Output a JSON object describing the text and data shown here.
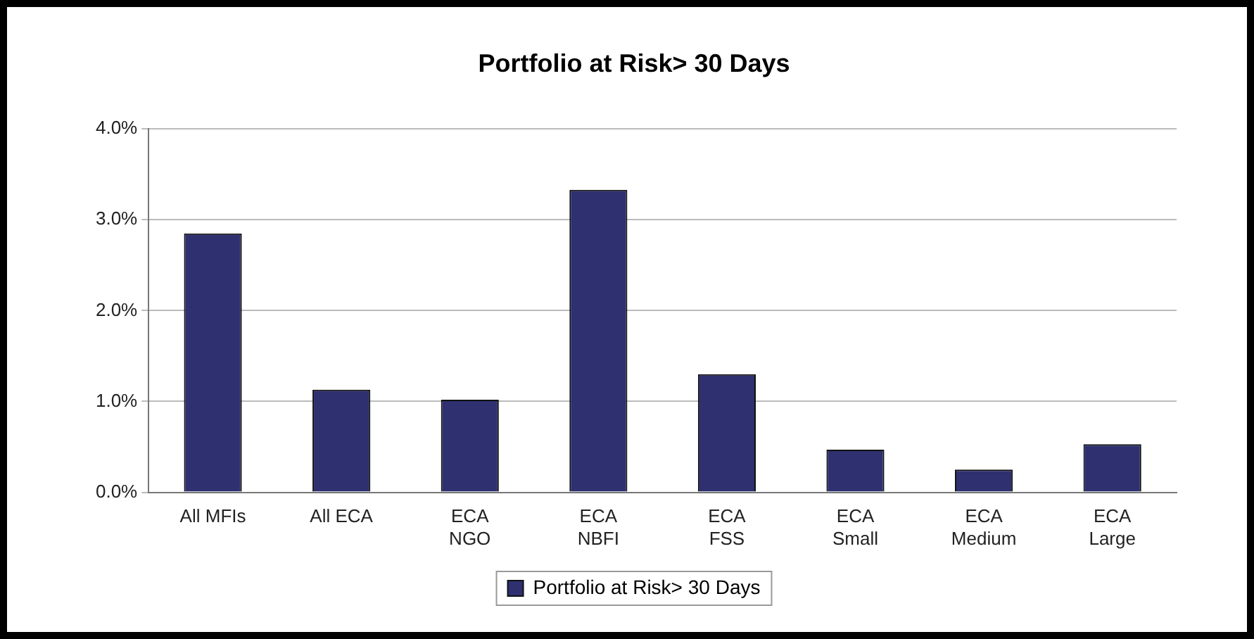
{
  "chart_data": {
    "type": "bar",
    "title": "Portfolio at Risk> 30 Days",
    "categories": [
      "All MFIs",
      "All ECA",
      "ECA\nNGO",
      "ECA\nNBFI",
      "ECA\nFSS",
      "ECA\nSmall",
      "ECA\nMedium",
      "ECA\nLarge"
    ],
    "series": [
      {
        "name": "Portfolio at Risk> 30 Days",
        "color": "#2e3070",
        "values": [
          2.85,
          1.13,
          1.02,
          3.33,
          1.3,
          0.47,
          0.25,
          0.53
        ]
      }
    ],
    "ylim": [
      0,
      4
    ],
    "yticks": [
      {
        "value": 0,
        "label": "0.0%"
      },
      {
        "value": 1,
        "label": "1.0%"
      },
      {
        "value": 2,
        "label": "2.0%"
      },
      {
        "value": 3,
        "label": "3.0%"
      },
      {
        "value": 4,
        "label": "4.0%"
      }
    ],
    "grid": "y",
    "legend": "bottom"
  }
}
